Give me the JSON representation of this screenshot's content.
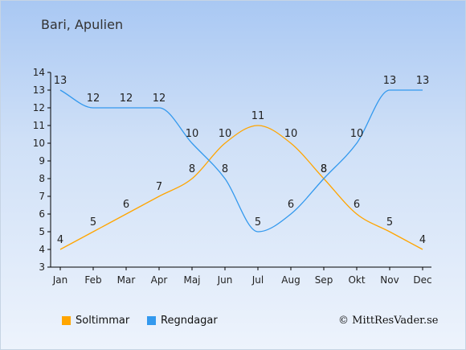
{
  "title": "Bari, Apulien",
  "copyright": "© MittResVader.se",
  "chart_data": {
    "type": "line",
    "categories": [
      "Jan",
      "Feb",
      "Mar",
      "Apr",
      "Maj",
      "Jun",
      "Jul",
      "Aug",
      "Sep",
      "Okt",
      "Nov",
      "Dec"
    ],
    "ylim": [
      3,
      14
    ],
    "yticks": [
      3,
      4,
      5,
      6,
      7,
      8,
      9,
      10,
      11,
      12,
      13,
      14
    ],
    "grid": false,
    "legend_position": "bottom-left",
    "series": [
      {
        "name": "Soltimmar",
        "color": "#ffa500",
        "values": [
          4,
          5,
          6,
          7,
          8,
          10,
          11,
          10,
          8,
          6,
          5,
          4
        ]
      },
      {
        "name": "Regndagar",
        "color": "#3399ee",
        "values": [
          13,
          12,
          12,
          12,
          10,
          8,
          5,
          6,
          8,
          10,
          13,
          13
        ]
      }
    ]
  }
}
